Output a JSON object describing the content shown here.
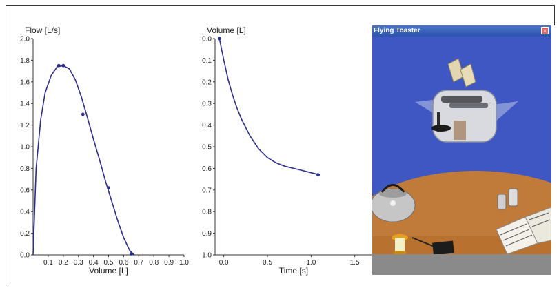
{
  "window": {
    "title": "Flying Toaster",
    "close_glyph": "×",
    "icons": {
      "close": "close-icon",
      "toaster": "toaster-icon",
      "kettle": "kettle-icon",
      "book": "book-icon"
    },
    "colors": {
      "titlebar": "#2b54ad",
      "sky": "#3e57c2",
      "table": "#c07a3a"
    }
  },
  "chart_data": [
    {
      "type": "line",
      "title": "",
      "ylabel": "Flow [L/s]",
      "xlabel": "Volume [L]",
      "xlim": [
        0,
        1.0
      ],
      "ylim": [
        0,
        2.0
      ],
      "x_ticks": [
        "0.1",
        "0.2",
        "0.3",
        "0.4",
        "0.5",
        "0.6",
        "0.7",
        "0.8",
        "0.9",
        "1.0"
      ],
      "y_ticks": [
        "0.0",
        "0.2",
        "0.4",
        "0.6",
        "0.8",
        "1.0",
        "1.2",
        "1.4",
        "1.6",
        "1.8",
        "2.0"
      ],
      "grid": false,
      "series": [
        {
          "x": [
            0.0,
            0.02,
            0.05,
            0.08,
            0.12,
            0.16,
            0.2,
            0.24,
            0.28,
            0.32,
            0.36,
            0.4,
            0.44,
            0.48,
            0.52,
            0.56,
            0.6,
            0.64,
            0.67
          ],
          "y": [
            0.0,
            0.8,
            1.25,
            1.5,
            1.66,
            1.74,
            1.75,
            1.72,
            1.62,
            1.46,
            1.27,
            1.07,
            0.88,
            0.68,
            0.5,
            0.32,
            0.16,
            0.04,
            0.0
          ]
        }
      ],
      "points": {
        "x": [
          0.17,
          0.2,
          0.33,
          0.5,
          0.65
        ],
        "y": [
          1.75,
          1.75,
          1.3,
          0.62,
          0.01
        ]
      }
    },
    {
      "type": "line",
      "title": "",
      "ylabel": "Volume [L]",
      "xlabel": "Time [s]",
      "xlim": [
        -0.1,
        1.7
      ],
      "ylim": [
        0.0,
        1.0
      ],
      "y_reversed": true,
      "x_ticks": [
        "0.0",
        "0.5",
        "1.0",
        "1.5"
      ],
      "y_ticks": [
        "0.0",
        "0.1",
        "0.2",
        "0.3",
        "0.4",
        "0.5",
        "0.6",
        "0.7",
        "0.8",
        "0.9",
        "1.0"
      ],
      "grid": false,
      "series": [
        {
          "x": [
            -0.05,
            0.0,
            0.05,
            0.1,
            0.15,
            0.2,
            0.3,
            0.4,
            0.5,
            0.6,
            0.7,
            0.8,
            0.9,
            1.0,
            1.1
          ],
          "y": [
            0.0,
            0.1,
            0.19,
            0.26,
            0.32,
            0.37,
            0.45,
            0.51,
            0.55,
            0.575,
            0.59,
            0.6,
            0.61,
            0.62,
            0.63
          ]
        }
      ],
      "points": {
        "x": [
          -0.05,
          1.08
        ],
        "y": [
          0.0,
          0.63
        ]
      }
    }
  ]
}
